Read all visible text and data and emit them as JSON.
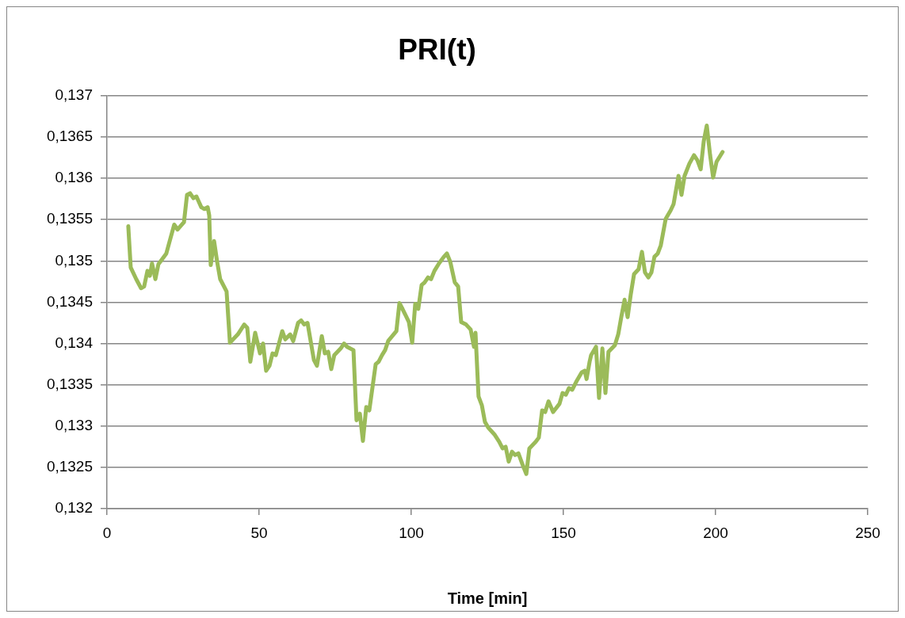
{
  "chart_data": {
    "type": "line",
    "title": "PRI(t)",
    "xlabel": "Time [min]",
    "x": [
      7.0,
      7.8,
      9.6,
      11.2,
      12.2,
      13.3,
      14.1,
      14.8,
      15.9,
      16.9,
      19.5,
      20.6,
      22.1,
      23.2,
      25.3,
      26.3,
      27.3,
      28.4,
      29.4,
      31.0,
      32.0,
      33.1,
      33.6,
      34.1,
      35.2,
      36.2,
      37.2,
      39.3,
      40.4,
      43.0,
      45.1,
      46.1,
      47.1,
      48.7,
      50.3,
      51.3,
      52.3,
      53.4,
      54.4,
      55.5,
      57.6,
      58.6,
      60.2,
      61.2,
      62.8,
      63.8,
      64.8,
      65.9,
      68.0,
      69.0,
      70.6,
      71.6,
      72.7,
      73.7,
      74.7,
      76.8,
      77.9,
      78.9,
      79.9,
      81.0,
      82.0,
      83.1,
      84.1,
      85.2,
      86.2,
      88.3,
      89.3,
      90.4,
      91.4,
      92.4,
      95.1,
      96.1,
      97.1,
      99.2,
      100.3,
      101.3,
      102.3,
      103.4,
      104.4,
      105.5,
      106.5,
      107.6,
      109.1,
      110.7,
      111.7,
      112.8,
      114.3,
      115.4,
      116.4,
      118.0,
      119.5,
      120.6,
      121.1,
      122.1,
      123.2,
      124.2,
      125.3,
      126.3,
      127.3,
      128.9,
      130.0,
      131.0,
      132.0,
      133.1,
      134.1,
      135.2,
      136.7,
      137.8,
      138.8,
      140.9,
      141.9,
      143.0,
      144.0,
      145.1,
      146.6,
      148.7,
      149.7,
      150.8,
      151.8,
      152.9,
      154.4,
      156.0,
      157.0,
      157.6,
      158.6,
      159.1,
      160.7,
      161.7,
      162.8,
      163.8,
      164.8,
      166.9,
      168.0,
      169.0,
      170.1,
      171.1,
      172.1,
      173.2,
      174.7,
      175.8,
      176.8,
      177.9,
      178.9,
      179.9,
      181.0,
      182.0,
      183.6,
      185.2,
      186.2,
      187.8,
      188.8,
      189.8,
      191.4,
      192.9,
      194.0,
      195.1,
      196.1,
      197.1,
      198.2,
      199.2,
      200.3,
      202.3
    ],
    "series": [
      {
        "color": "#9bbb59",
        "values": [
          0.13542,
          0.13492,
          0.13478,
          0.13467,
          0.13469,
          0.13488,
          0.13482,
          0.13497,
          0.13478,
          0.13496,
          0.13509,
          0.13524,
          0.13544,
          0.13538,
          0.13547,
          0.1358,
          0.13582,
          0.13576,
          0.13578,
          0.13565,
          0.13563,
          0.13565,
          0.13555,
          0.13495,
          0.13524,
          0.13499,
          0.13478,
          0.13463,
          0.13401,
          0.13411,
          0.13423,
          0.13419,
          0.13378,
          0.13413,
          0.13388,
          0.134,
          0.13367,
          0.13373,
          0.13388,
          0.13386,
          0.13415,
          0.13405,
          0.13411,
          0.13403,
          0.13425,
          0.13428,
          0.13423,
          0.13425,
          0.1338,
          0.13373,
          0.13409,
          0.13388,
          0.1339,
          0.13369,
          0.13386,
          0.13394,
          0.134,
          0.13396,
          0.13394,
          0.13392,
          0.13307,
          0.13315,
          0.13282,
          0.13323,
          0.13319,
          0.13375,
          0.13378,
          0.13386,
          0.13392,
          0.13403,
          0.13415,
          0.13449,
          0.13442,
          0.13426,
          0.13401,
          0.13448,
          0.13442,
          0.13471,
          0.13474,
          0.1348,
          0.13478,
          0.13488,
          0.13497,
          0.13505,
          0.13509,
          0.13499,
          0.13474,
          0.13469,
          0.13426,
          0.13423,
          0.13417,
          0.13396,
          0.13413,
          0.13336,
          0.13325,
          0.13305,
          0.13298,
          0.13294,
          0.1329,
          0.13281,
          0.13273,
          0.13275,
          0.13257,
          0.13269,
          0.13265,
          0.13267,
          0.13252,
          0.13242,
          0.13273,
          0.13281,
          0.13286,
          0.13319,
          0.13317,
          0.1333,
          0.13317,
          0.13327,
          0.1334,
          0.13338,
          0.13346,
          0.13344,
          0.13355,
          0.13365,
          0.13367,
          0.13357,
          0.13378,
          0.13386,
          0.13396,
          0.13334,
          0.13394,
          0.1334,
          0.1339,
          0.13398,
          0.13411,
          0.13432,
          0.13453,
          0.13432,
          0.13459,
          0.13484,
          0.1349,
          0.13511,
          0.13486,
          0.1348,
          0.13486,
          0.13505,
          0.13509,
          0.13519,
          0.13551,
          0.13561,
          0.13569,
          0.13603,
          0.1358,
          0.13603,
          0.13618,
          0.13628,
          0.13622,
          0.13611,
          0.13645,
          0.13664,
          0.13628,
          0.13601,
          0.1362,
          0.13632
        ]
      }
    ],
    "xlim": [
      0,
      250
    ],
    "xticks": [
      0,
      50,
      100,
      150,
      200,
      250
    ],
    "ylim": [
      0.132,
      0.137
    ],
    "yticks": [
      {
        "value": 0.132,
        "label": "0,132"
      },
      {
        "value": 0.1325,
        "label": "0,1325"
      },
      {
        "value": 0.133,
        "label": "0,133"
      },
      {
        "value": 0.1335,
        "label": "0,1335"
      },
      {
        "value": 0.134,
        "label": "0,134"
      },
      {
        "value": 0.1345,
        "label": "0,1345"
      },
      {
        "value": 0.135,
        "label": "0,135"
      },
      {
        "value": 0.1355,
        "label": "0,1355"
      },
      {
        "value": 0.136,
        "label": "0,136"
      },
      {
        "value": 0.1365,
        "label": "0,1365"
      },
      {
        "value": 0.137,
        "label": "0,137"
      }
    ],
    "grid": "y",
    "legend": false,
    "marker": "none",
    "line_style": "solid"
  }
}
